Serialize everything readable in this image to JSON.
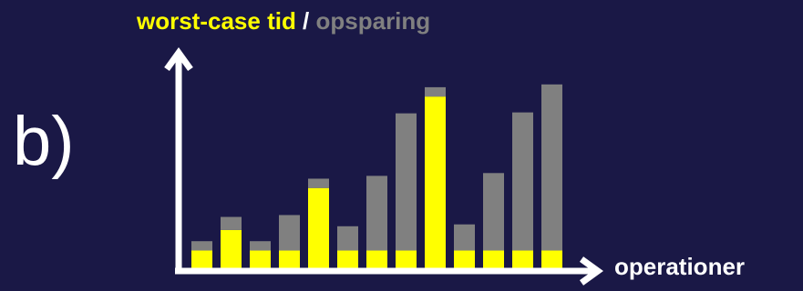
{
  "panel_label": "b)",
  "colors": {
    "background": "#1a1846",
    "worst_case": "#ffff00",
    "savings": "#808080",
    "axis": "#ffffff"
  },
  "chart_data": {
    "type": "bar",
    "stacked": true,
    "title_parts": [
      {
        "text": "worst-case tid",
        "color": "#ffff00"
      },
      {
        "text": " / ",
        "color": "#ffffff"
      },
      {
        "text": "opsparing",
        "color": "#808080"
      }
    ],
    "xlabel": "operationer",
    "ylabel": "",
    "categories": [
      "",
      "",
      "",
      "",
      "",
      "",
      "",
      "",
      "",
      "",
      "",
      "",
      ""
    ],
    "series": [
      {
        "name": "worst-case tid",
        "color": "#ffff00",
        "values": [
          20,
          42,
          20,
          20,
          87,
          20,
          20,
          20,
          185,
          20,
          20,
          20,
          20
        ]
      },
      {
        "name": "opsparing",
        "color": "#808080",
        "values": [
          10,
          14,
          10,
          38,
          10,
          26,
          80,
          147,
          10,
          28,
          83,
          148,
          178
        ]
      }
    ],
    "ylim": [
      0,
      230
    ],
    "grid": false,
    "legend": "none"
  }
}
